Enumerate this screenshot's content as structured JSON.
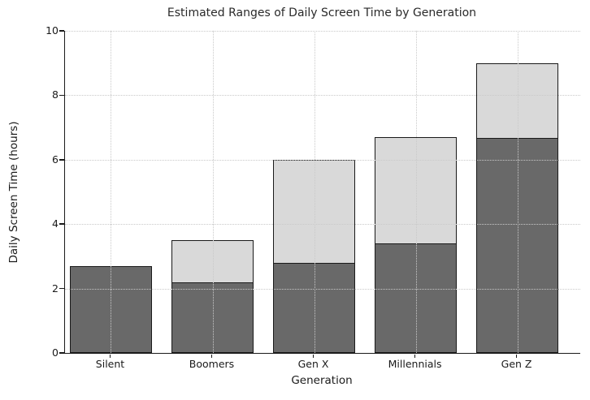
{
  "chart_data": {
    "type": "bar",
    "subtype": "stacked-range-bars (dark lower segment = lower estimate, light upper segment extends to upper estimate)",
    "title": "Estimated Ranges of Daily Screen Time by Generation",
    "xlabel": "Generation",
    "ylabel": "Daily Screen Time (hours)",
    "categories": [
      "Silent",
      "Boomers",
      "Gen X",
      "Millennials",
      "Gen Z"
    ],
    "series": [
      {
        "name": "lower_estimate",
        "values": [
          2.7,
          2.2,
          2.8,
          3.4,
          6.7
        ]
      },
      {
        "name": "upper_estimate",
        "values": [
          2.7,
          3.5,
          6.0,
          6.7,
          9.0
        ]
      }
    ],
    "ylim": [
      0,
      10
    ],
    "yticks": [
      0,
      2,
      4,
      6,
      8,
      10
    ],
    "grid": {
      "style": "dotted",
      "axes": "both",
      "color": "#c9c9c9",
      "drawn_above_bars": true
    },
    "legend_position": "none",
    "colors": {
      "lower_bar": "#696969",
      "upper_bar": "#d9d9d9",
      "bar_edge": "#1a1a1a",
      "axis": "#1a1a1a",
      "text": "#1a1a1a",
      "background": "#ffffff"
    }
  }
}
